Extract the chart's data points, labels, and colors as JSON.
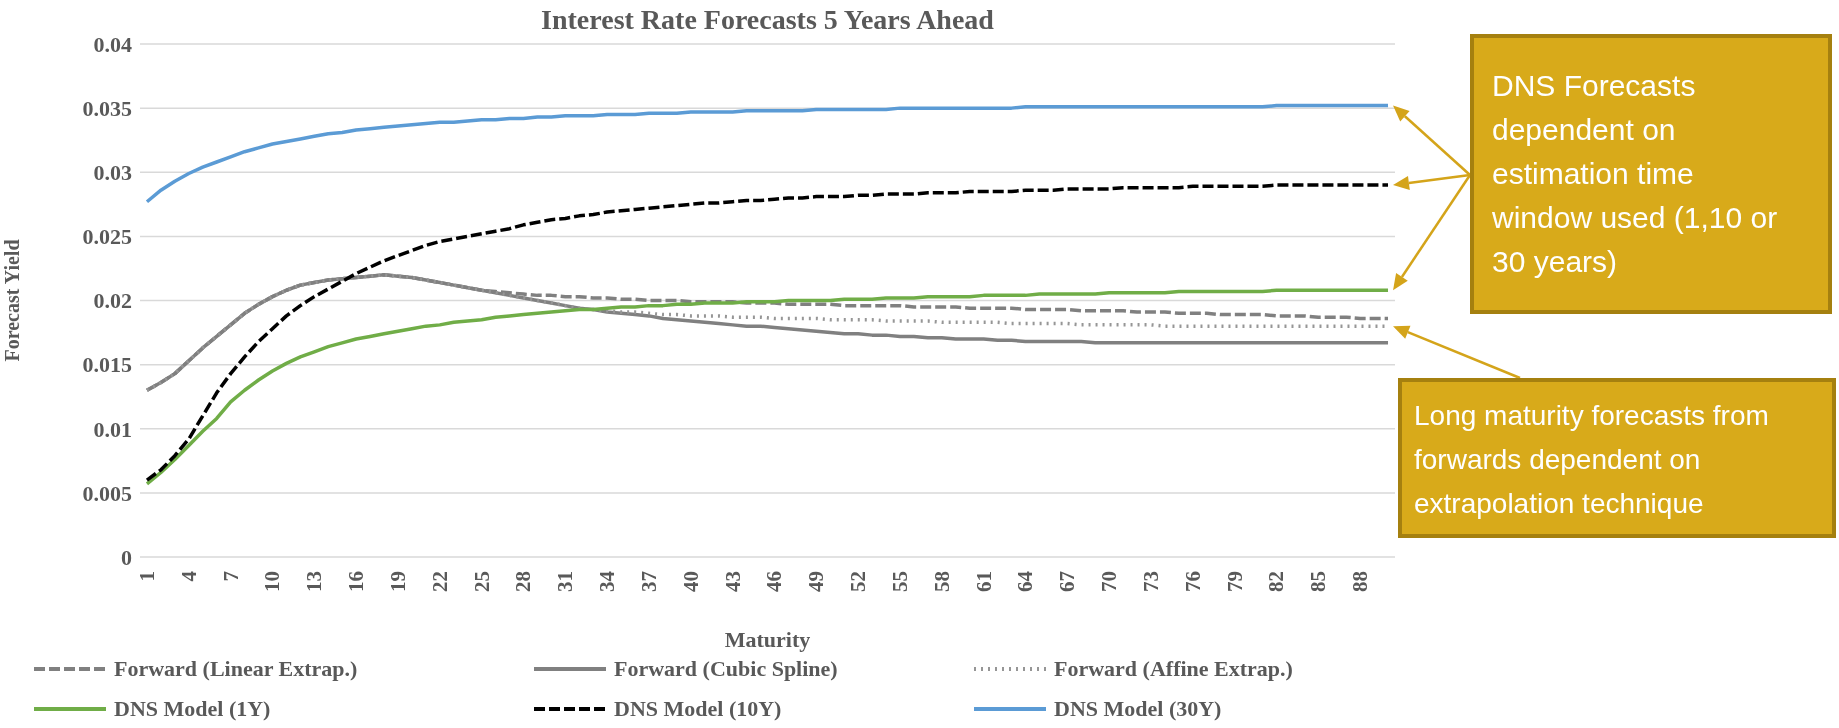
{
  "chart_data": {
    "type": "line",
    "title": "Interest Rate Forecasts 5 Years Ahead",
    "xlabel": "Maturity",
    "ylabel": "Forecast  Yield",
    "categories": [
      "1",
      null,
      null,
      "4",
      null,
      null,
      "7",
      null,
      null,
      "10",
      null,
      null,
      "13",
      null,
      null,
      "16",
      null,
      null,
      "19",
      null,
      null,
      "22",
      null,
      null,
      "25",
      null,
      null,
      "28",
      null,
      null,
      "31",
      null,
      null,
      "34",
      null,
      null,
      "37",
      null,
      null,
      "40",
      null,
      null,
      "43",
      null,
      null,
      "46",
      null,
      null,
      "49",
      null,
      null,
      "52",
      null,
      null,
      "55",
      null,
      null,
      "58",
      null,
      null,
      "61",
      null,
      null,
      "64",
      null,
      null,
      "67",
      null,
      null,
      "70",
      null,
      null,
      "73",
      null,
      null,
      "76",
      null,
      null,
      "79",
      null,
      null,
      "82",
      null,
      null,
      "85",
      null,
      null,
      "88",
      null,
      null
    ],
    "ylim": [
      0,
      0.04
    ],
    "yticks": [
      0,
      0.005,
      0.01,
      0.015,
      0.02,
      0.025,
      0.03,
      0.035,
      0.04
    ],
    "grid": "y",
    "legend": "bottom",
    "series": [
      {
        "name": "Forward (Linear Extrap.)",
        "color": "#808080",
        "line_style": "dashed",
        "values": [
          0.013,
          0.0136,
          0.0143,
          0.0153,
          0.0163,
          0.0172,
          0.0181,
          0.019,
          0.0197,
          0.0203,
          0.0208,
          0.0212,
          0.0214,
          0.0216,
          0.0217,
          0.0218,
          0.0219,
          0.022,
          0.0219,
          0.0218,
          0.0216,
          0.0214,
          0.0212,
          0.021,
          0.0208,
          0.0207,
          0.0206,
          0.0205,
          0.0204,
          0.0204,
          0.0203,
          0.0203,
          0.0202,
          0.0202,
          0.0201,
          0.0201,
          0.02,
          0.02,
          0.02,
          0.0199,
          0.0199,
          0.0199,
          0.0199,
          0.0198,
          0.0198,
          0.0198,
          0.0197,
          0.0197,
          0.0197,
          0.0197,
          0.0196,
          0.0196,
          0.0196,
          0.0196,
          0.0196,
          0.0195,
          0.0195,
          0.0195,
          0.0195,
          0.0194,
          0.0194,
          0.0194,
          0.0194,
          0.0193,
          0.0193,
          0.0193,
          0.0193,
          0.0192,
          0.0192,
          0.0192,
          0.0192,
          0.0191,
          0.0191,
          0.0191,
          0.019,
          0.019,
          0.019,
          0.0189,
          0.0189,
          0.0189,
          0.0189,
          0.0188,
          0.0188,
          0.0188,
          0.0187,
          0.0187,
          0.0187,
          0.0186,
          0.0186,
          0.0186
        ]
      },
      {
        "name": "Forward (Cubic Spline)",
        "color": "#808080",
        "line_style": "solid",
        "values": [
          0.013,
          0.0136,
          0.0143,
          0.0153,
          0.0163,
          0.0172,
          0.0181,
          0.019,
          0.0197,
          0.0203,
          0.0208,
          0.0212,
          0.0214,
          0.0216,
          0.0217,
          0.0218,
          0.0219,
          0.022,
          0.0219,
          0.0218,
          0.0216,
          0.0214,
          0.0212,
          0.021,
          0.0208,
          0.0206,
          0.0204,
          0.0202,
          0.02,
          0.0198,
          0.0196,
          0.0194,
          0.0193,
          0.0191,
          0.019,
          0.0189,
          0.0188,
          0.0186,
          0.0185,
          0.0184,
          0.0183,
          0.0182,
          0.0181,
          0.018,
          0.018,
          0.0179,
          0.0178,
          0.0177,
          0.0176,
          0.0175,
          0.0174,
          0.0174,
          0.0173,
          0.0173,
          0.0172,
          0.0172,
          0.0171,
          0.0171,
          0.017,
          0.017,
          0.017,
          0.0169,
          0.0169,
          0.0168,
          0.0168,
          0.0168,
          0.0168,
          0.0168,
          0.0167,
          0.0167,
          0.0167,
          0.0167,
          0.0167,
          0.0167,
          0.0167,
          0.0167,
          0.0167,
          0.0167,
          0.0167,
          0.0167,
          0.0167,
          0.0167,
          0.0167,
          0.0167,
          0.0167,
          0.0167,
          0.0167,
          0.0167,
          0.0167,
          0.0167
        ]
      },
      {
        "name": "Forward (Affine Extrap.)",
        "color": "#969696",
        "line_style": "dotted",
        "values": [
          0.013,
          0.0136,
          0.0143,
          0.0153,
          0.0163,
          0.0172,
          0.0181,
          0.019,
          0.0197,
          0.0203,
          0.0208,
          0.0212,
          0.0214,
          0.0216,
          0.0217,
          0.0218,
          0.0219,
          0.022,
          0.0219,
          0.0218,
          0.0216,
          0.0214,
          0.0212,
          0.021,
          0.0208,
          0.0206,
          0.0204,
          0.0202,
          0.02,
          0.0198,
          0.0196,
          0.0194,
          0.0193,
          0.0192,
          0.0191,
          0.0191,
          0.019,
          0.0189,
          0.0189,
          0.0188,
          0.0188,
          0.0188,
          0.0187,
          0.0187,
          0.0187,
          0.0186,
          0.0186,
          0.0186,
          0.0186,
          0.0185,
          0.0185,
          0.0185,
          0.0185,
          0.0184,
          0.0184,
          0.0184,
          0.0184,
          0.0183,
          0.0183,
          0.0183,
          0.0183,
          0.0183,
          0.0182,
          0.0182,
          0.0182,
          0.0182,
          0.0182,
          0.0181,
          0.0181,
          0.0181,
          0.0181,
          0.0181,
          0.0181,
          0.018,
          0.018,
          0.018,
          0.018,
          0.018,
          0.018,
          0.018,
          0.018,
          0.018,
          0.018,
          0.018,
          0.018,
          0.018,
          0.018,
          0.018,
          0.018,
          0.018
        ]
      },
      {
        "name": "DNS Model (1Y)",
        "color": "#70ad47",
        "line_style": "solid",
        "values": [
          0.0057,
          0.0066,
          0.0076,
          0.0087,
          0.0098,
          0.0108,
          0.0121,
          0.013,
          0.0138,
          0.0145,
          0.0151,
          0.0156,
          0.016,
          0.0164,
          0.0167,
          0.017,
          0.0172,
          0.0174,
          0.0176,
          0.0178,
          0.018,
          0.0181,
          0.0183,
          0.0184,
          0.0185,
          0.0187,
          0.0188,
          0.0189,
          0.019,
          0.0191,
          0.0192,
          0.0193,
          0.0193,
          0.0194,
          0.0195,
          0.0195,
          0.0196,
          0.0196,
          0.0197,
          0.0197,
          0.0198,
          0.0198,
          0.0198,
          0.0199,
          0.0199,
          0.0199,
          0.02,
          0.02,
          0.02,
          0.02,
          0.0201,
          0.0201,
          0.0201,
          0.0202,
          0.0202,
          0.0202,
          0.0203,
          0.0203,
          0.0203,
          0.0203,
          0.0204,
          0.0204,
          0.0204,
          0.0204,
          0.0205,
          0.0205,
          0.0205,
          0.0205,
          0.0205,
          0.0206,
          0.0206,
          0.0206,
          0.0206,
          0.0206,
          0.0207,
          0.0207,
          0.0207,
          0.0207,
          0.0207,
          0.0207,
          0.0207,
          0.0208,
          0.0208,
          0.0208,
          0.0208,
          0.0208,
          0.0208,
          0.0208,
          0.0208,
          0.0208
        ]
      },
      {
        "name": "DNS Model (10Y)",
        "color": "#000000",
        "line_style": "dashed",
        "values": [
          0.006,
          0.0068,
          0.0079,
          0.0092,
          0.011,
          0.0128,
          0.0143,
          0.0156,
          0.0168,
          0.0178,
          0.0188,
          0.0196,
          0.0203,
          0.0209,
          0.0215,
          0.0221,
          0.0226,
          0.0231,
          0.0235,
          0.0239,
          0.0243,
          0.0246,
          0.0248,
          0.025,
          0.0252,
          0.0254,
          0.0256,
          0.0259,
          0.0261,
          0.0263,
          0.0264,
          0.0266,
          0.0267,
          0.0269,
          0.027,
          0.0271,
          0.0272,
          0.0273,
          0.0274,
          0.0275,
          0.0276,
          0.0276,
          0.0277,
          0.0278,
          0.0278,
          0.0279,
          0.028,
          0.028,
          0.0281,
          0.0281,
          0.0281,
          0.0282,
          0.0282,
          0.0283,
          0.0283,
          0.0283,
          0.0284,
          0.0284,
          0.0284,
          0.0285,
          0.0285,
          0.0285,
          0.0285,
          0.0286,
          0.0286,
          0.0286,
          0.0287,
          0.0287,
          0.0287,
          0.0287,
          0.0288,
          0.0288,
          0.0288,
          0.0288,
          0.0288,
          0.0289,
          0.0289,
          0.0289,
          0.0289,
          0.0289,
          0.0289,
          0.029,
          0.029,
          0.029,
          0.029,
          0.029,
          0.029,
          0.029,
          0.029,
          0.029
        ]
      },
      {
        "name": "DNS Model (30Y)",
        "color": "#5b9bd5",
        "line_style": "solid",
        "values": [
          0.0277,
          0.0286,
          0.0293,
          0.0299,
          0.0304,
          0.0308,
          0.0312,
          0.0316,
          0.0319,
          0.0322,
          0.0324,
          0.0326,
          0.0328,
          0.033,
          0.0331,
          0.0333,
          0.0334,
          0.0335,
          0.0336,
          0.0337,
          0.0338,
          0.0339,
          0.0339,
          0.034,
          0.0341,
          0.0341,
          0.0342,
          0.0342,
          0.0343,
          0.0343,
          0.0344,
          0.0344,
          0.0344,
          0.0345,
          0.0345,
          0.0345,
          0.0346,
          0.0346,
          0.0346,
          0.0347,
          0.0347,
          0.0347,
          0.0347,
          0.0348,
          0.0348,
          0.0348,
          0.0348,
          0.0348,
          0.0349,
          0.0349,
          0.0349,
          0.0349,
          0.0349,
          0.0349,
          0.035,
          0.035,
          0.035,
          0.035,
          0.035,
          0.035,
          0.035,
          0.035,
          0.035,
          0.0351,
          0.0351,
          0.0351,
          0.0351,
          0.0351,
          0.0351,
          0.0351,
          0.0351,
          0.0351,
          0.0351,
          0.0351,
          0.0351,
          0.0351,
          0.0351,
          0.0351,
          0.0351,
          0.0351,
          0.0351,
          0.0352,
          0.0352,
          0.0352,
          0.0352,
          0.0352,
          0.0352,
          0.0352,
          0.0352,
          0.0352
        ]
      }
    ],
    "annotations": [
      "DNS Forecasts dependent on estimation time window used (1,10 or 30 years)",
      "Long maturity forecasts from forwards dependent on extrapolation technique"
    ]
  }
}
